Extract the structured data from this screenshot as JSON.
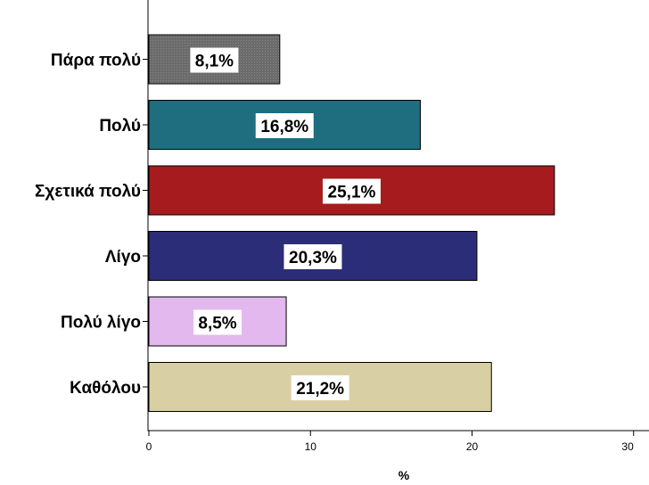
{
  "chart_data": {
    "type": "bar",
    "orientation": "horizontal",
    "categories": [
      "Πάρα πολύ",
      "Πολύ",
      "Σχετικά πολύ",
      "Λίγο",
      "Πολύ λίγο",
      "Καθόλου"
    ],
    "values": [
      8.1,
      16.8,
      25.1,
      20.3,
      8.5,
      21.2
    ],
    "data_labels": [
      "8,1%",
      "16,8%",
      "25,1%",
      "20,3%",
      "8,5%",
      "21,2%"
    ],
    "colors": [
      "#6f6f6f",
      "#1f6e80",
      "#a51b1e",
      "#2b2d78",
      "#e3b8ee",
      "#d8d0a4"
    ],
    "xlabel": "%",
    "ylabel": "",
    "xlim": [
      0,
      30
    ],
    "xticks": [
      0,
      10,
      20,
      30
    ],
    "grid": false,
    "legend": "none"
  }
}
